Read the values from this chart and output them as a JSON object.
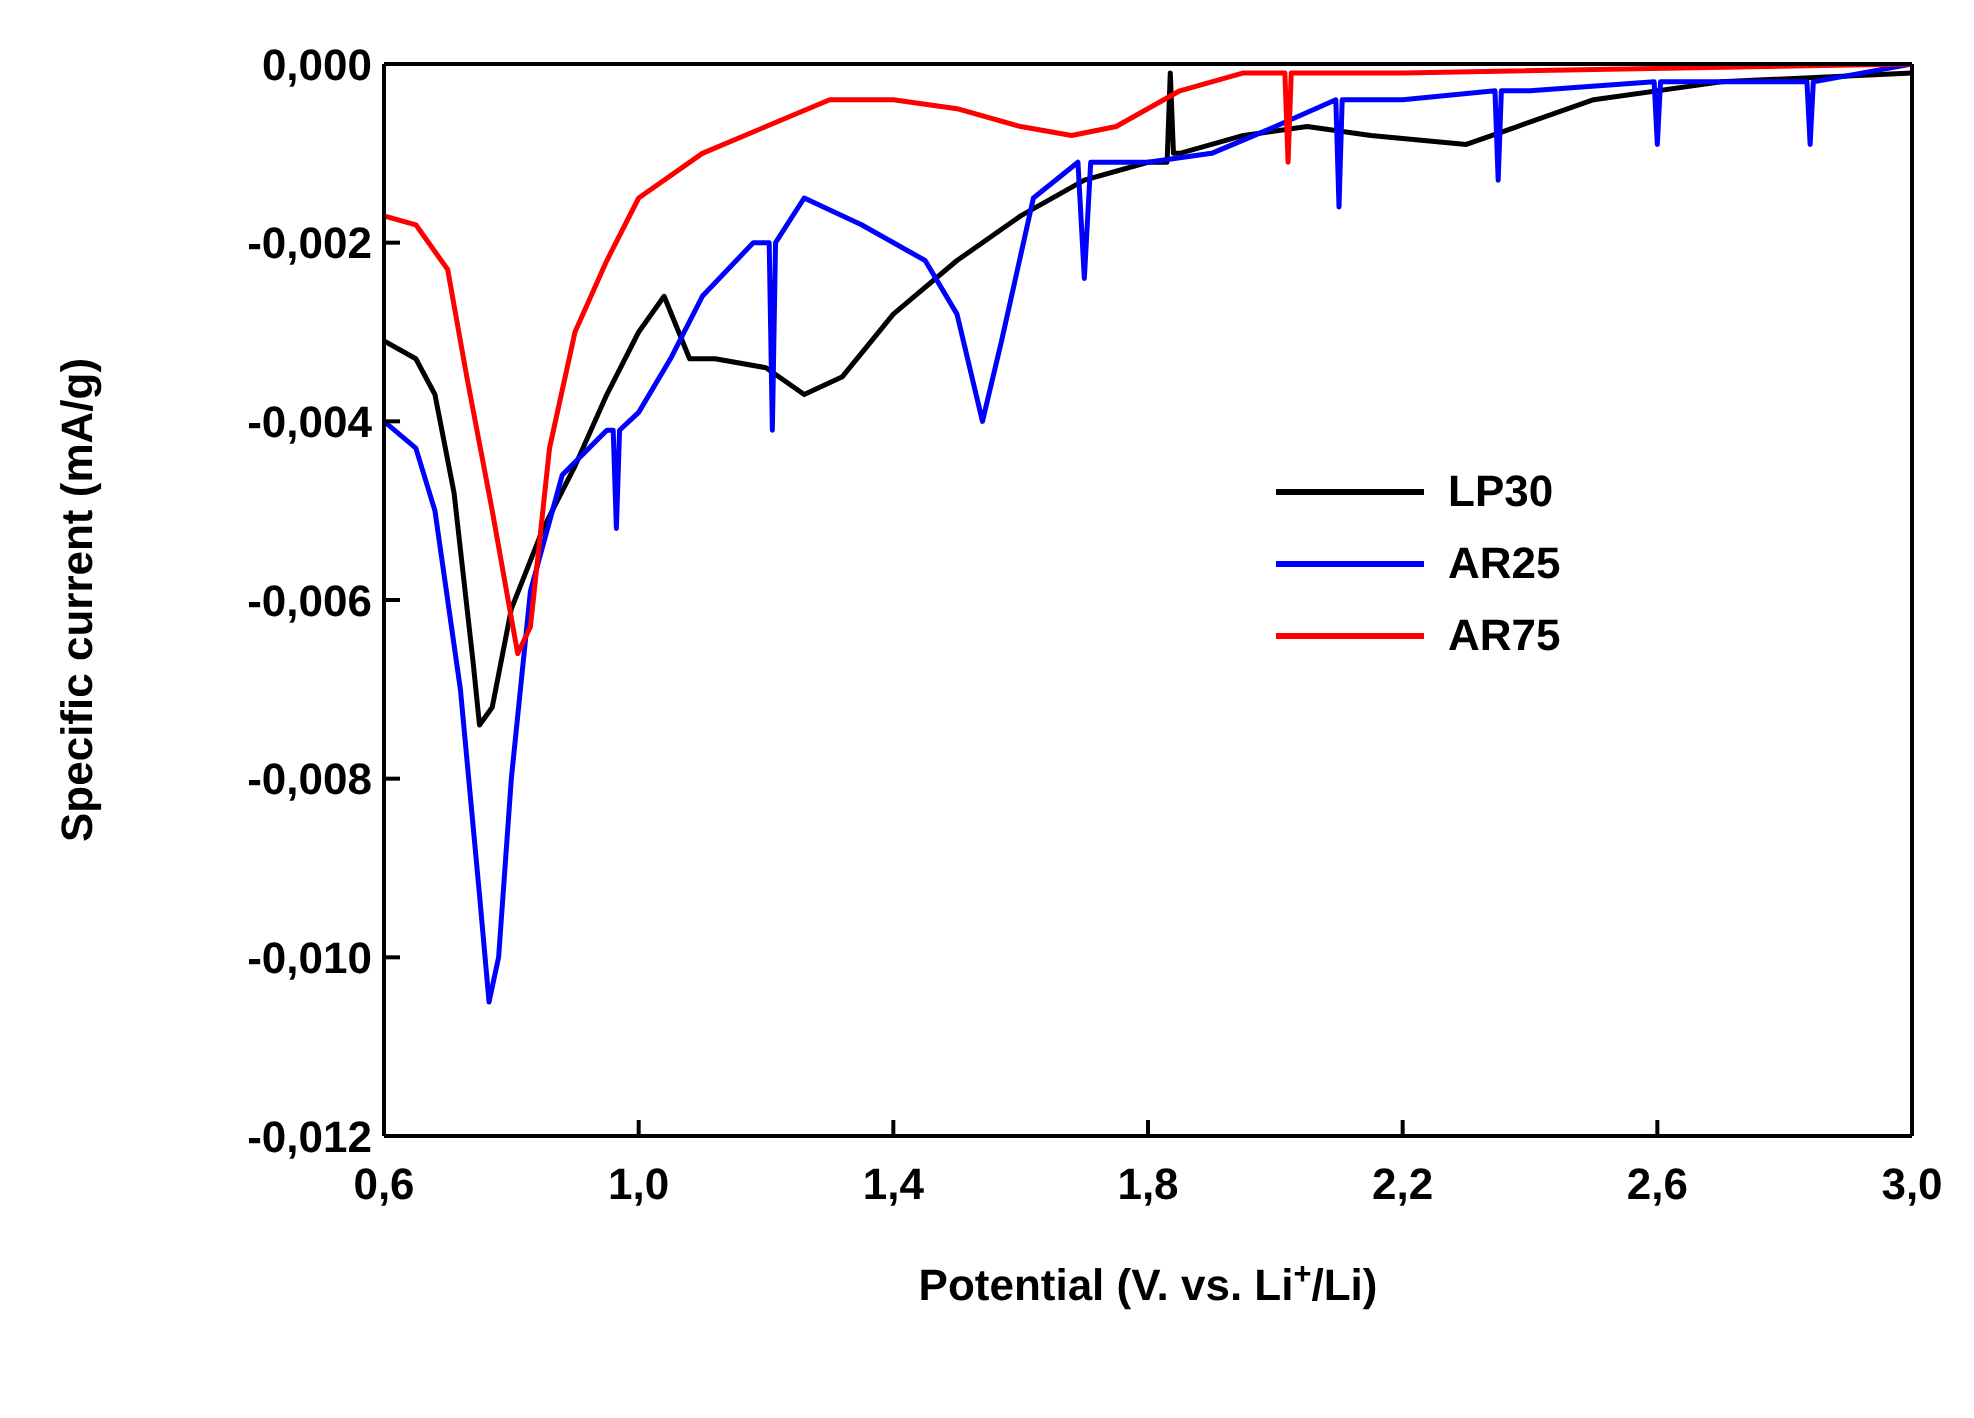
{
  "chart_data": {
    "type": "line",
    "xlabel": "Potential (V. vs. Li$^{+}$/Li)",
    "ylabel": "Specific current (mA/g)",
    "xlim": [
      0.6,
      3.0
    ],
    "xticks": [
      {
        "value": 0.6,
        "label": "0,6"
      },
      {
        "value": 1.0,
        "label": "1,0"
      },
      {
        "value": 1.4,
        "label": "1,4"
      },
      {
        "value": 1.8,
        "label": "1,8"
      },
      {
        "value": 2.2,
        "label": "2,2"
      },
      {
        "value": 2.6,
        "label": "2,6"
      },
      {
        "value": 3.0,
        "label": "3,0"
      }
    ],
    "ylim": [
      -0.012,
      0
    ],
    "yticks": [
      {
        "value": -0.012,
        "label": "-0,012"
      },
      {
        "value": -0.01,
        "label": "-0,010"
      },
      {
        "value": -0.008,
        "label": "-0,008"
      },
      {
        "value": -0.006,
        "label": "-0,006"
      },
      {
        "value": -0.004,
        "label": "-0,004"
      },
      {
        "value": -0.002,
        "label": "-0,002"
      },
      {
        "value": 0,
        "label": "0,000"
      }
    ],
    "grid": false,
    "legend": "right",
    "marker": "none",
    "line_style": "solid",
    "series": [
      {
        "name": "LP30",
        "color": "#000000",
        "x": [
          0.6,
          0.65,
          0.68,
          0.71,
          0.74,
          0.75,
          0.77,
          0.8,
          0.85,
          0.9,
          0.95,
          1.0,
          1.04,
          1.08,
          1.12,
          1.2,
          1.26,
          1.32,
          1.4,
          1.5,
          1.6,
          1.7,
          1.8,
          1.83,
          1.835,
          1.84,
          1.85,
          1.95,
          2.05,
          2.15,
          2.3,
          2.38,
          2.5,
          2.7,
          3.0
        ],
        "values": [
          -0.0031,
          -0.0033,
          -0.0037,
          -0.0048,
          -0.0067,
          -0.0074,
          -0.0072,
          -0.0061,
          -0.0052,
          -0.0045,
          -0.0037,
          -0.003,
          -0.0026,
          -0.0033,
          -0.0033,
          -0.0034,
          -0.0037,
          -0.0035,
          -0.0028,
          -0.0022,
          -0.0017,
          -0.0013,
          -0.0011,
          -0.0011,
          -0.0001,
          -0.001,
          -0.001,
          -0.0008,
          -0.0007,
          -0.0008,
          -0.0009,
          -0.0007,
          -0.0004,
          -0.0002,
          -0.0001
        ]
      },
      {
        "name": "AR25",
        "color": "#0000ff",
        "x": [
          0.6,
          0.65,
          0.68,
          0.72,
          0.75,
          0.765,
          0.78,
          0.8,
          0.83,
          0.88,
          0.95,
          0.96,
          0.965,
          0.97,
          1.0,
          1.05,
          1.1,
          1.18,
          1.205,
          1.21,
          1.215,
          1.26,
          1.35,
          1.45,
          1.5,
          1.54,
          1.57,
          1.62,
          1.69,
          1.7,
          1.71,
          1.8,
          1.9,
          2.0,
          2.095,
          2.1,
          2.105,
          2.2,
          2.345,
          2.35,
          2.355,
          2.4,
          2.595,
          2.6,
          2.605,
          2.835,
          2.84,
          2.845,
          3.0
        ],
        "values": [
          -0.004,
          -0.0043,
          -0.005,
          -0.007,
          -0.0093,
          -0.0105,
          -0.01,
          -0.008,
          -0.0059,
          -0.0046,
          -0.0041,
          -0.0041,
          -0.0052,
          -0.0041,
          -0.0039,
          -0.0033,
          -0.0026,
          -0.002,
          -0.002,
          -0.0041,
          -0.002,
          -0.0015,
          -0.0018,
          -0.0022,
          -0.0028,
          -0.004,
          -0.0031,
          -0.0015,
          -0.0011,
          -0.0024,
          -0.0011,
          -0.0011,
          -0.001,
          -0.0007,
          -0.0004,
          -0.0016,
          -0.0004,
          -0.0004,
          -0.0003,
          -0.0013,
          -0.0003,
          -0.0003,
          -0.0002,
          -0.0009,
          -0.0002,
          -0.0002,
          -0.0009,
          -0.0002,
          0
        ]
      },
      {
        "name": "AR75",
        "color": "#ff0000",
        "x": [
          0.6,
          0.65,
          0.7,
          0.73,
          0.77,
          0.81,
          0.83,
          0.86,
          0.9,
          0.95,
          1.0,
          1.1,
          1.2,
          1.3,
          1.4,
          1.5,
          1.6,
          1.68,
          1.75,
          1.85,
          1.95,
          2.015,
          2.02,
          2.025,
          2.2,
          3.0
        ],
        "values": [
          -0.0017,
          -0.0018,
          -0.0023,
          -0.0035,
          -0.005,
          -0.0066,
          -0.0063,
          -0.0043,
          -0.003,
          -0.0022,
          -0.0015,
          -0.001,
          -0.0007,
          -0.0004,
          -0.0004,
          -0.0005,
          -0.0007,
          -0.0008,
          -0.0007,
          -0.0003,
          -0.0001,
          -0.0001,
          -0.0011,
          -0.0001,
          -0.0001,
          0
        ]
      }
    ]
  }
}
